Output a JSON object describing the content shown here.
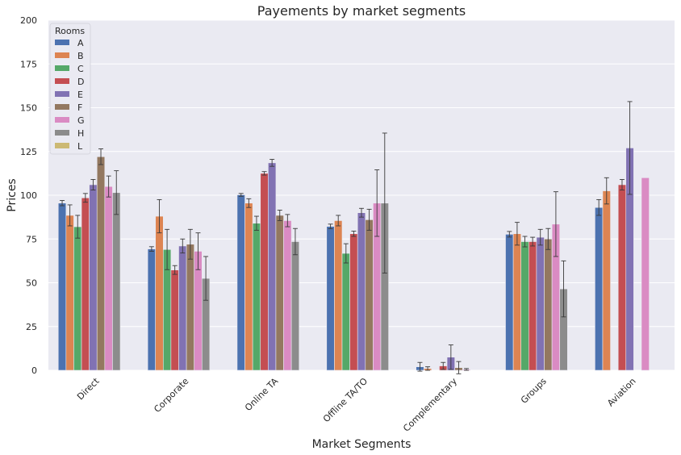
{
  "chart_data": {
    "type": "bar",
    "title": "Payements by market segments",
    "xlabel": "Market Segments",
    "ylabel": "Prices",
    "ylim": [
      0,
      200
    ],
    "yticks": [
      0,
      25,
      50,
      75,
      100,
      125,
      150,
      175,
      200
    ],
    "grid": true,
    "legend": {
      "title": "Rooms",
      "placement": "top-left"
    },
    "categories": [
      "Direct",
      "Corporate",
      "Online TA",
      "Offline TA/TO",
      "Complementary",
      "Groups",
      "Aviation"
    ],
    "series": [
      {
        "name": "A",
        "color": "#4c72b0",
        "values": [
          95.5,
          69.3,
          100.2,
          82.2,
          2.0,
          77.7,
          93.0
        ],
        "errors": [
          1.5,
          1.3,
          0.8,
          1.3,
          2.5,
          1.6,
          4.5
        ]
      },
      {
        "name": "B",
        "color": "#dd8452",
        "values": [
          88.5,
          88.0,
          95.5,
          85.5,
          1.0,
          78.0,
          102.5
        ],
        "errors": [
          6.0,
          9.5,
          2.5,
          3.0,
          1.0,
          6.5,
          7.5
        ]
      },
      {
        "name": "C",
        "color": "#55a868",
        "values": [
          82.0,
          69.0,
          84.0,
          66.8,
          null,
          73.5,
          null
        ],
        "errors": [
          6.5,
          11.5,
          4.0,
          5.5,
          null,
          3.0,
          null
        ]
      },
      {
        "name": "D",
        "color": "#c44e52",
        "values": [
          98.5,
          57.3,
          112.5,
          78.0,
          2.5,
          73.5,
          106.0
        ],
        "errors": [
          2.5,
          2.5,
          1.0,
          1.5,
          2.0,
          2.5,
          3.0
        ]
      },
      {
        "name": "E",
        "color": "#8172b3",
        "values": [
          106.0,
          71.0,
          118.5,
          90.0,
          7.5,
          76.0,
          127.0
        ],
        "errors": [
          3.0,
          4.0,
          2.0,
          2.5,
          7.0,
          4.5,
          26.5
        ]
      },
      {
        "name": "F",
        "color": "#937860",
        "values": [
          122.0,
          72.0,
          88.5,
          86.0,
          1.5,
          75.0,
          null
        ],
        "errors": [
          4.5,
          8.5,
          3.0,
          6.0,
          3.5,
          6.0,
          null
        ]
      },
      {
        "name": "G",
        "color": "#da8bc3",
        "values": [
          105.0,
          68.0,
          85.5,
          95.5,
          0.5,
          83.5,
          110.0
        ],
        "errors": [
          6.0,
          10.5,
          3.5,
          19.0,
          0.5,
          18.5,
          null
        ]
      },
      {
        "name": "H",
        "color": "#8c8c8c",
        "values": [
          101.5,
          52.5,
          73.5,
          95.5,
          null,
          46.5,
          null
        ],
        "errors": [
          12.5,
          12.5,
          7.5,
          40.0,
          null,
          16.0,
          null
        ]
      },
      {
        "name": "L",
        "color": "#ccb974",
        "values": [
          null,
          null,
          null,
          null,
          null,
          null,
          null
        ],
        "errors": [
          null,
          null,
          null,
          null,
          null,
          null,
          null
        ]
      }
    ]
  }
}
